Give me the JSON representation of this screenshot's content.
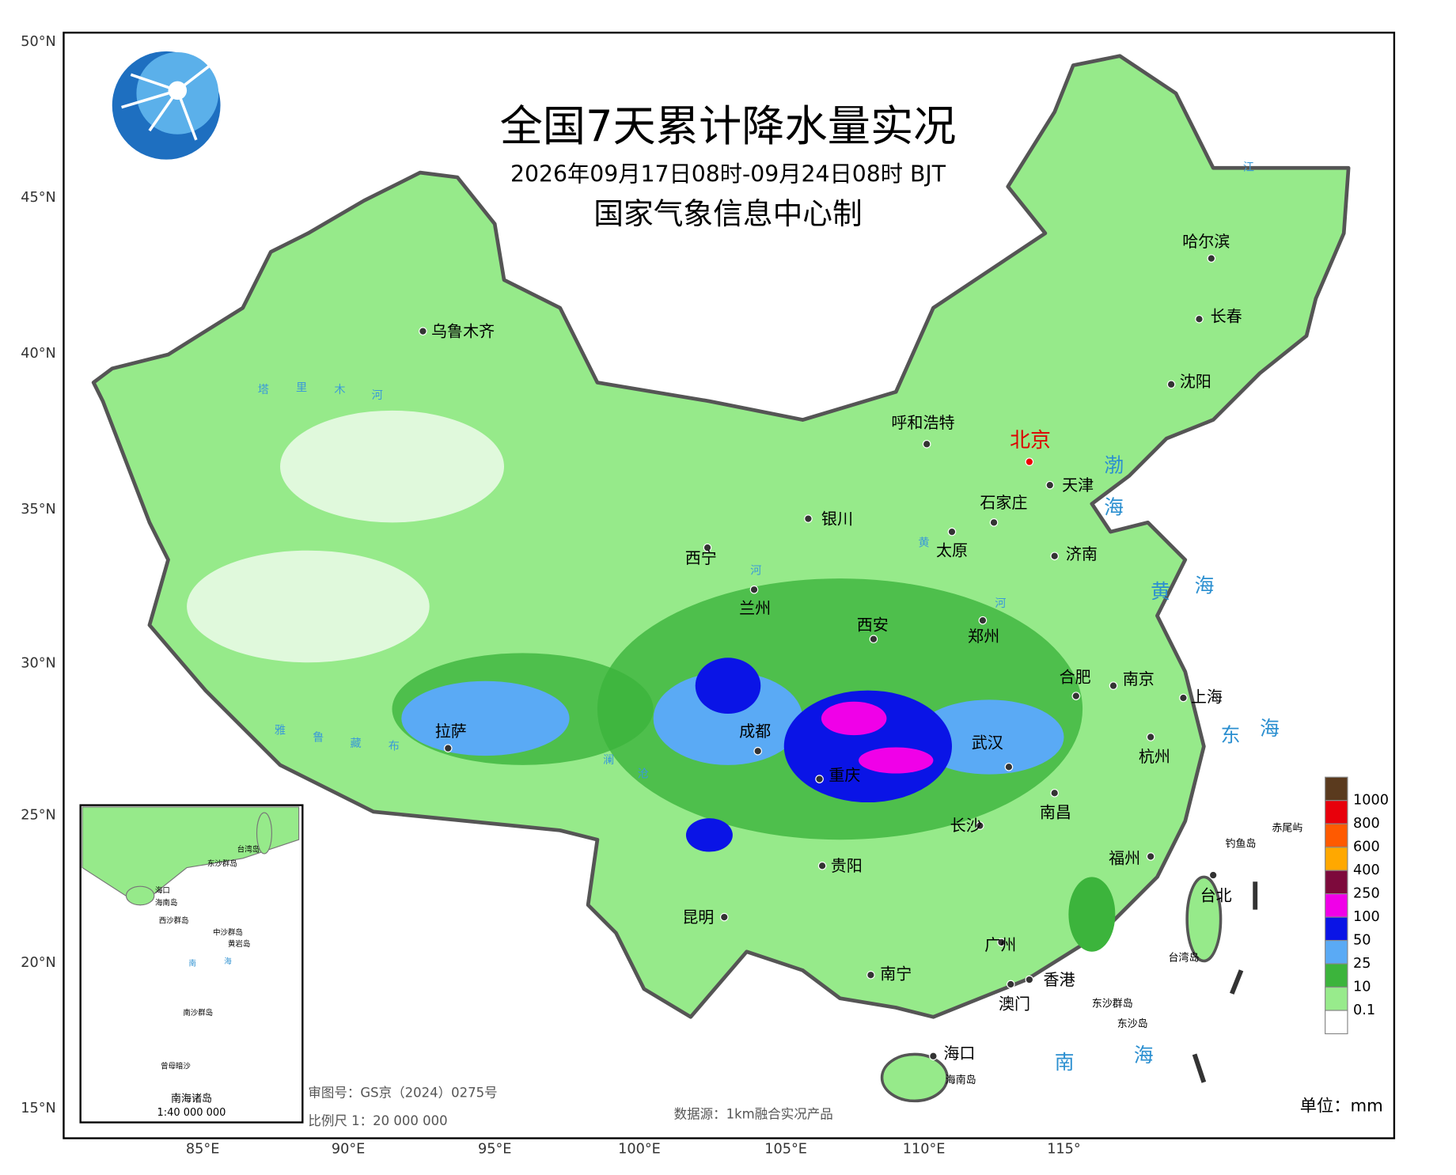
{
  "header": {
    "title": "全国7天累计降水量实况",
    "subtitle": "2026年09月17日08时-09月24日08时 BJT",
    "producer": "国家气象信息中心制"
  },
  "lat_labels": [
    "50°N",
    "45°N",
    "40°N",
    "35°N",
    "30°N",
    "25°N",
    "20°N",
    "15°N"
  ],
  "lon_labels": [
    "85°E",
    "90°E",
    "95°E",
    "100°E",
    "105°E",
    "110°E",
    "115°"
  ],
  "cities": [
    "乌鲁木齐",
    "呼和浩特",
    "北京",
    "天津",
    "石家庄",
    "银川",
    "太原",
    "济南",
    "西宁",
    "兰州",
    "西安",
    "郑州",
    "合肥",
    "南京",
    "上海",
    "拉萨",
    "成都",
    "重庆",
    "武汉",
    "杭州",
    "南昌",
    "长沙",
    "福州",
    "贵阳",
    "昆明",
    "台北",
    "广州",
    "南宁",
    "香港",
    "澳门",
    "海口",
    "哈尔滨",
    "长春",
    "沈阳"
  ],
  "places": [
    "钓鱼岛",
    "赤尾屿",
    "台湾岛",
    "东沙群岛",
    "东沙岛",
    "海南岛"
  ],
  "seas": [
    "渤",
    "海",
    "黄",
    "海",
    "东",
    "海",
    "南",
    "海"
  ],
  "rivers": [
    "塔",
    "里",
    "木",
    "河",
    "雅",
    "鲁",
    "藏",
    "布",
    "澜",
    "沧",
    "河",
    "黄",
    "河",
    "江"
  ],
  "legend": {
    "levels": [
      "1000",
      "800",
      "600",
      "400",
      "250",
      "100",
      "50",
      "25",
      "10",
      "0.1"
    ],
    "colors": [
      "#5a3a1e",
      "#e8000b",
      "#ff5a00",
      "#ffa800",
      "#7d0a3c",
      "#f000e8",
      "#0a14e6",
      "#5aaaf5",
      "#3cb43c",
      "#98eb8c",
      "#ffffff"
    ]
  },
  "unit": "单位：mm",
  "notes": {
    "approval": "审图号：GS京（2024）0275号",
    "scale": "比例尺 1：20 000 000",
    "source": "数据源：1km融合实况产品"
  },
  "inset": {
    "title": "南海诸岛",
    "scale": "1:40 000 000",
    "labels": [
      "海口",
      "海南岛",
      "东沙群岛",
      "西沙群岛",
      "中沙群岛",
      "黄岩岛",
      "南",
      "海",
      "南沙群岛",
      "台湾岛",
      "曾母暗沙"
    ]
  }
}
